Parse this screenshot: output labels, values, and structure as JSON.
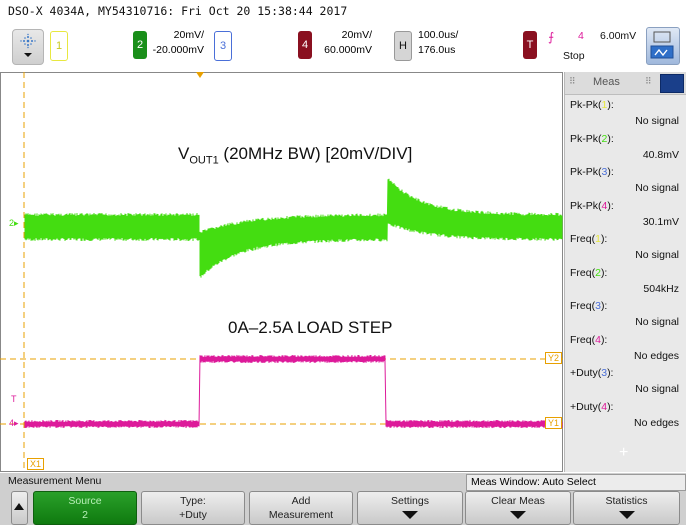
{
  "window": {
    "title": "DSO-X 4034A, MY54310716: Fri Oct 20 15:38:44 2017"
  },
  "toolbar": {
    "ch1": {
      "label": "1"
    },
    "ch2": {
      "label": "2",
      "scale": "20mV/",
      "offset": "-20.000mV"
    },
    "ch3": {
      "label": "3"
    },
    "ch4": {
      "label": "4",
      "scale": "20mV/",
      "offset": "60.000mV"
    },
    "horizontal": {
      "label": "H",
      "timebase": "100.0us/",
      "delay": "176.0us"
    },
    "trigger": {
      "label": "T",
      "source": "4",
      "level": "6.00mV",
      "mode": "Stop",
      "edge_symbol": "⨍"
    },
    "colors": {
      "ch1": "#e8e840",
      "ch2": "#1a8f1a",
      "ch3": "#4a6fd8",
      "ch4": "#8a1020",
      "trace_green": "#44dd11",
      "trace_pink": "#dd1a9a"
    }
  },
  "graticule": {
    "markers": {
      "ch2": "2",
      "ch4": "4",
      "trig": "T",
      "y1": "Y1",
      "y2": "Y2",
      "x1": "X1"
    },
    "annotations": {
      "vout_main": "V",
      "vout_sub": "OUT1",
      "vout_rest": " (20MHz BW) [20mV/DIV]",
      "load_step": "0A–2.5A LOAD STEP"
    }
  },
  "meas_panel": {
    "title": "Meas",
    "items": [
      {
        "name": "Pk-Pk(",
        "ch": "1",
        "close": "):",
        "value": "No signal",
        "color": "#e8e840"
      },
      {
        "name": "Pk-Pk(",
        "ch": "2",
        "close": "):",
        "value": "40.8mV",
        "color": "#44dd11"
      },
      {
        "name": "Pk-Pk(",
        "ch": "3",
        "close": "):",
        "value": "No signal",
        "color": "#4a6fd8"
      },
      {
        "name": "Pk-Pk(",
        "ch": "4",
        "close": "):",
        "value": "30.1mV",
        "color": "#dd1a9a"
      },
      {
        "name": "Freq(",
        "ch": "1",
        "close": "):",
        "value": "No signal",
        "color": "#e8e840"
      },
      {
        "name": "Freq(",
        "ch": "2",
        "close": "):",
        "value": "504kHz",
        "color": "#44dd11"
      },
      {
        "name": "Freq(",
        "ch": "3",
        "close": "):",
        "value": "No signal",
        "color": "#4a6fd8"
      },
      {
        "name": "Freq(",
        "ch": "4",
        "close": "):",
        "value": "No edges",
        "color": "#dd1a9a"
      },
      {
        "name": "+Duty(",
        "ch": "3",
        "close": "):",
        "value": "No signal",
        "color": "#4a6fd8"
      },
      {
        "name": "+Duty(",
        "ch": "4",
        "close": "):",
        "value": "No edges",
        "color": "#dd1a9a"
      }
    ],
    "add": "+"
  },
  "bottom": {
    "menu_title": "Measurement Menu",
    "meas_window": "Meas Window: Auto Select",
    "softkeys": [
      {
        "l1": "Source",
        "l2": "2"
      },
      {
        "l1": "Type:",
        "l2": "+Duty"
      },
      {
        "l1": "Add",
        "l2": "Measurement"
      },
      {
        "l1": "Settings",
        "l2": ""
      },
      {
        "l1": "Clear Meas",
        "l2": ""
      },
      {
        "l1": "Statistics",
        "l2": ""
      }
    ]
  }
}
